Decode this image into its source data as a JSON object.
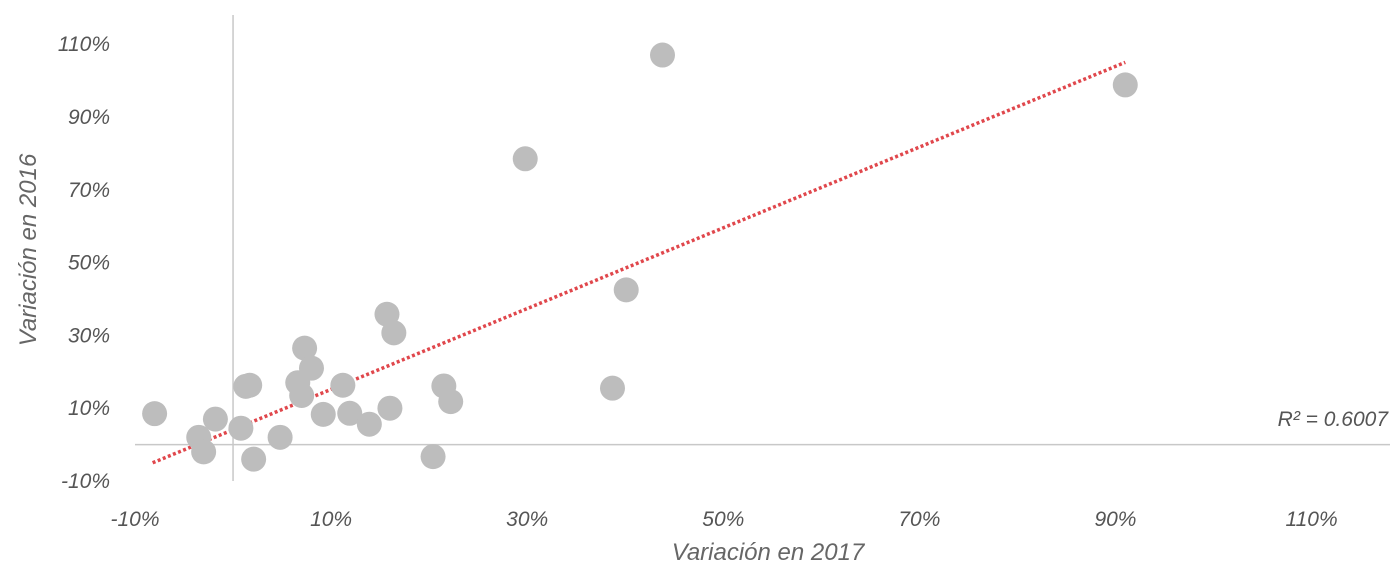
{
  "chart_data": {
    "type": "scatter",
    "xlabel": "Variación en 2017",
    "ylabel": "Variación en 2016",
    "xlim": [
      -10,
      118
    ],
    "ylim": [
      -10,
      118
    ],
    "x_ticks": [
      -10,
      10,
      30,
      50,
      70,
      90,
      110
    ],
    "y_ticks": [
      -10,
      10,
      30,
      50,
      70,
      90,
      110
    ],
    "tick_suffix": "%",
    "grid": false,
    "point_color": "#bdbdbd",
    "trendline_color": "#e0474c",
    "axis_color": "#c8c8c8",
    "points": [
      {
        "x": -8.0,
        "y": 8.5
      },
      {
        "x": -3.5,
        "y": 2.0
      },
      {
        "x": -3.0,
        "y": -2.0
      },
      {
        "x": -1.8,
        "y": 7.0
      },
      {
        "x": 0.8,
        "y": 4.5
      },
      {
        "x": 1.3,
        "y": 16.0
      },
      {
        "x": 1.7,
        "y": 16.3
      },
      {
        "x": 2.1,
        "y": -4.0
      },
      {
        "x": 4.8,
        "y": 2.0
      },
      {
        "x": 6.6,
        "y": 17.0
      },
      {
        "x": 7.0,
        "y": 13.5
      },
      {
        "x": 7.3,
        "y": 26.5
      },
      {
        "x": 8.0,
        "y": 21.0
      },
      {
        "x": 9.2,
        "y": 8.3
      },
      {
        "x": 11.2,
        "y": 16.3
      },
      {
        "x": 11.9,
        "y": 8.6
      },
      {
        "x": 13.9,
        "y": 5.6
      },
      {
        "x": 15.7,
        "y": 35.8
      },
      {
        "x": 16.0,
        "y": 10.0
      },
      {
        "x": 16.4,
        "y": 30.7
      },
      {
        "x": 20.4,
        "y": -3.3
      },
      {
        "x": 21.5,
        "y": 16.1
      },
      {
        "x": 22.2,
        "y": 11.8
      },
      {
        "x": 29.8,
        "y": 78.5
      },
      {
        "x": 38.7,
        "y": 15.5
      },
      {
        "x": 40.1,
        "y": 42.5
      },
      {
        "x": 43.8,
        "y": 107.0
      },
      {
        "x": 91.0,
        "y": 98.8
      }
    ],
    "trendline": {
      "x": [
        -8.2,
        91.0
      ],
      "y": [
        -5.0,
        105.0
      ],
      "label": "R² = 0.6007"
    }
  }
}
